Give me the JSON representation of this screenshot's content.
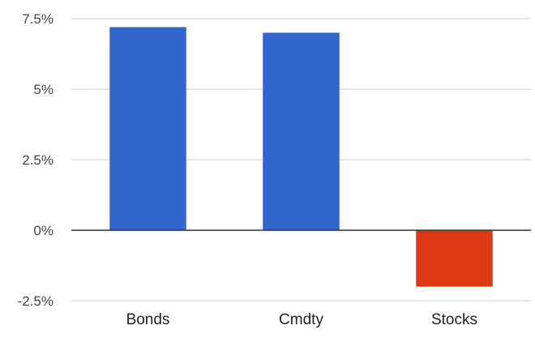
{
  "chart_data": {
    "type": "bar",
    "categories": [
      "Bonds",
      "Cmdty",
      "Stocks"
    ],
    "values": [
      7.2,
      7.0,
      -2.0
    ],
    "ylim": [
      -2.5,
      7.5
    ],
    "yticks": [
      -2.5,
      0,
      2.5,
      5,
      7.5
    ],
    "ytick_labels": [
      "-2.5%",
      "0%",
      "2.5%",
      "5%",
      "7.5%"
    ],
    "grid": true,
    "legend": "none",
    "colors": {
      "positive": "#3366cc",
      "negative": "#dc3912"
    }
  }
}
